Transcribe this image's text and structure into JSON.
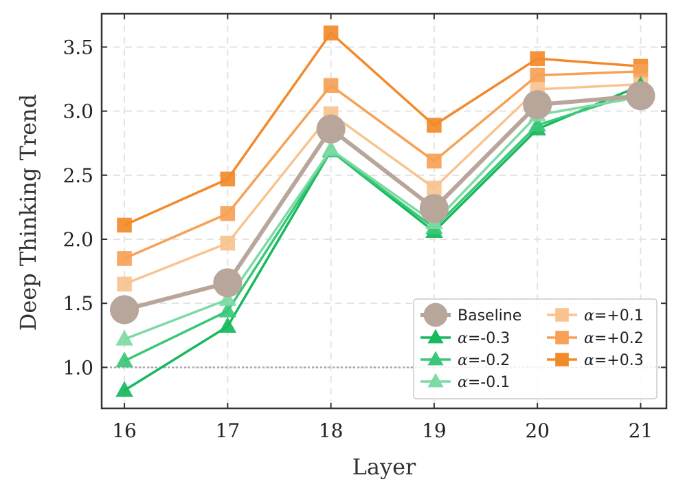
{
  "chart_data": {
    "type": "line",
    "xlabel": "Layer",
    "ylabel": "Deep Thinking Trend",
    "x": [
      16,
      17,
      18,
      19,
      20,
      21
    ],
    "xlim": [
      15.78,
      21.25
    ],
    "ylim": [
      0.68,
      3.76
    ],
    "x_ticks": [
      "16",
      "17",
      "18",
      "19",
      "20",
      "21"
    ],
    "y_ticks": [
      "1.0",
      "1.5",
      "2.0",
      "2.5",
      "3.0",
      "3.5"
    ],
    "y_tick_values": [
      1.0,
      1.5,
      2.0,
      2.5,
      3.0,
      3.5
    ],
    "grid": true,
    "reference_line": 1.0,
    "legend_position": "lower-right",
    "series": [
      {
        "name": "α=+0.3",
        "legend_prefix": "α",
        "legend_value": "=+0.3",
        "color": "#f28a2a",
        "marker": "square",
        "values": [
          2.11,
          2.47,
          3.61,
          2.89,
          3.41,
          3.35
        ]
      },
      {
        "name": "α=+0.2",
        "legend_prefix": "α",
        "legend_value": "=+0.2",
        "color": "#f6a155",
        "marker": "square",
        "values": [
          1.85,
          2.2,
          3.2,
          2.61,
          3.28,
          3.31
        ]
      },
      {
        "name": "α=+0.1",
        "legend_prefix": "α",
        "legend_value": "=+0.1",
        "color": "#f9c38f",
        "marker": "square",
        "values": [
          1.65,
          1.97,
          2.98,
          2.4,
          3.17,
          3.21
        ]
      },
      {
        "name": "α=-0.3",
        "legend_prefix": "α",
        "legend_value": "=-0.3",
        "color": "#16b95c",
        "marker": "triangle",
        "values": [
          0.82,
          1.32,
          2.69,
          2.06,
          2.86,
          3.2
        ]
      },
      {
        "name": "α=-0.2",
        "legend_prefix": "α",
        "legend_value": "=-0.2",
        "color": "#3ac778",
        "marker": "triangle",
        "values": [
          1.05,
          1.44,
          2.69,
          2.09,
          2.89,
          3.15
        ]
      },
      {
        "name": "α=-0.1",
        "legend_prefix": "α",
        "legend_value": "=-0.1",
        "color": "#7ddaa4",
        "marker": "triangle",
        "values": [
          1.22,
          1.53,
          2.7,
          2.13,
          2.97,
          3.11
        ]
      },
      {
        "name": "Baseline",
        "legend_prefix": "",
        "legend_value": "Baseline",
        "color": "#b9a69b",
        "marker": "circle",
        "values": [
          1.45,
          1.66,
          2.86,
          2.24,
          3.05,
          3.12
        ]
      }
    ],
    "legend_order": [
      "Baseline",
      "α=-0.3",
      "α=-0.2",
      "α=-0.1",
      "α=+0.1",
      "α=+0.2",
      "α=+0.3"
    ]
  }
}
